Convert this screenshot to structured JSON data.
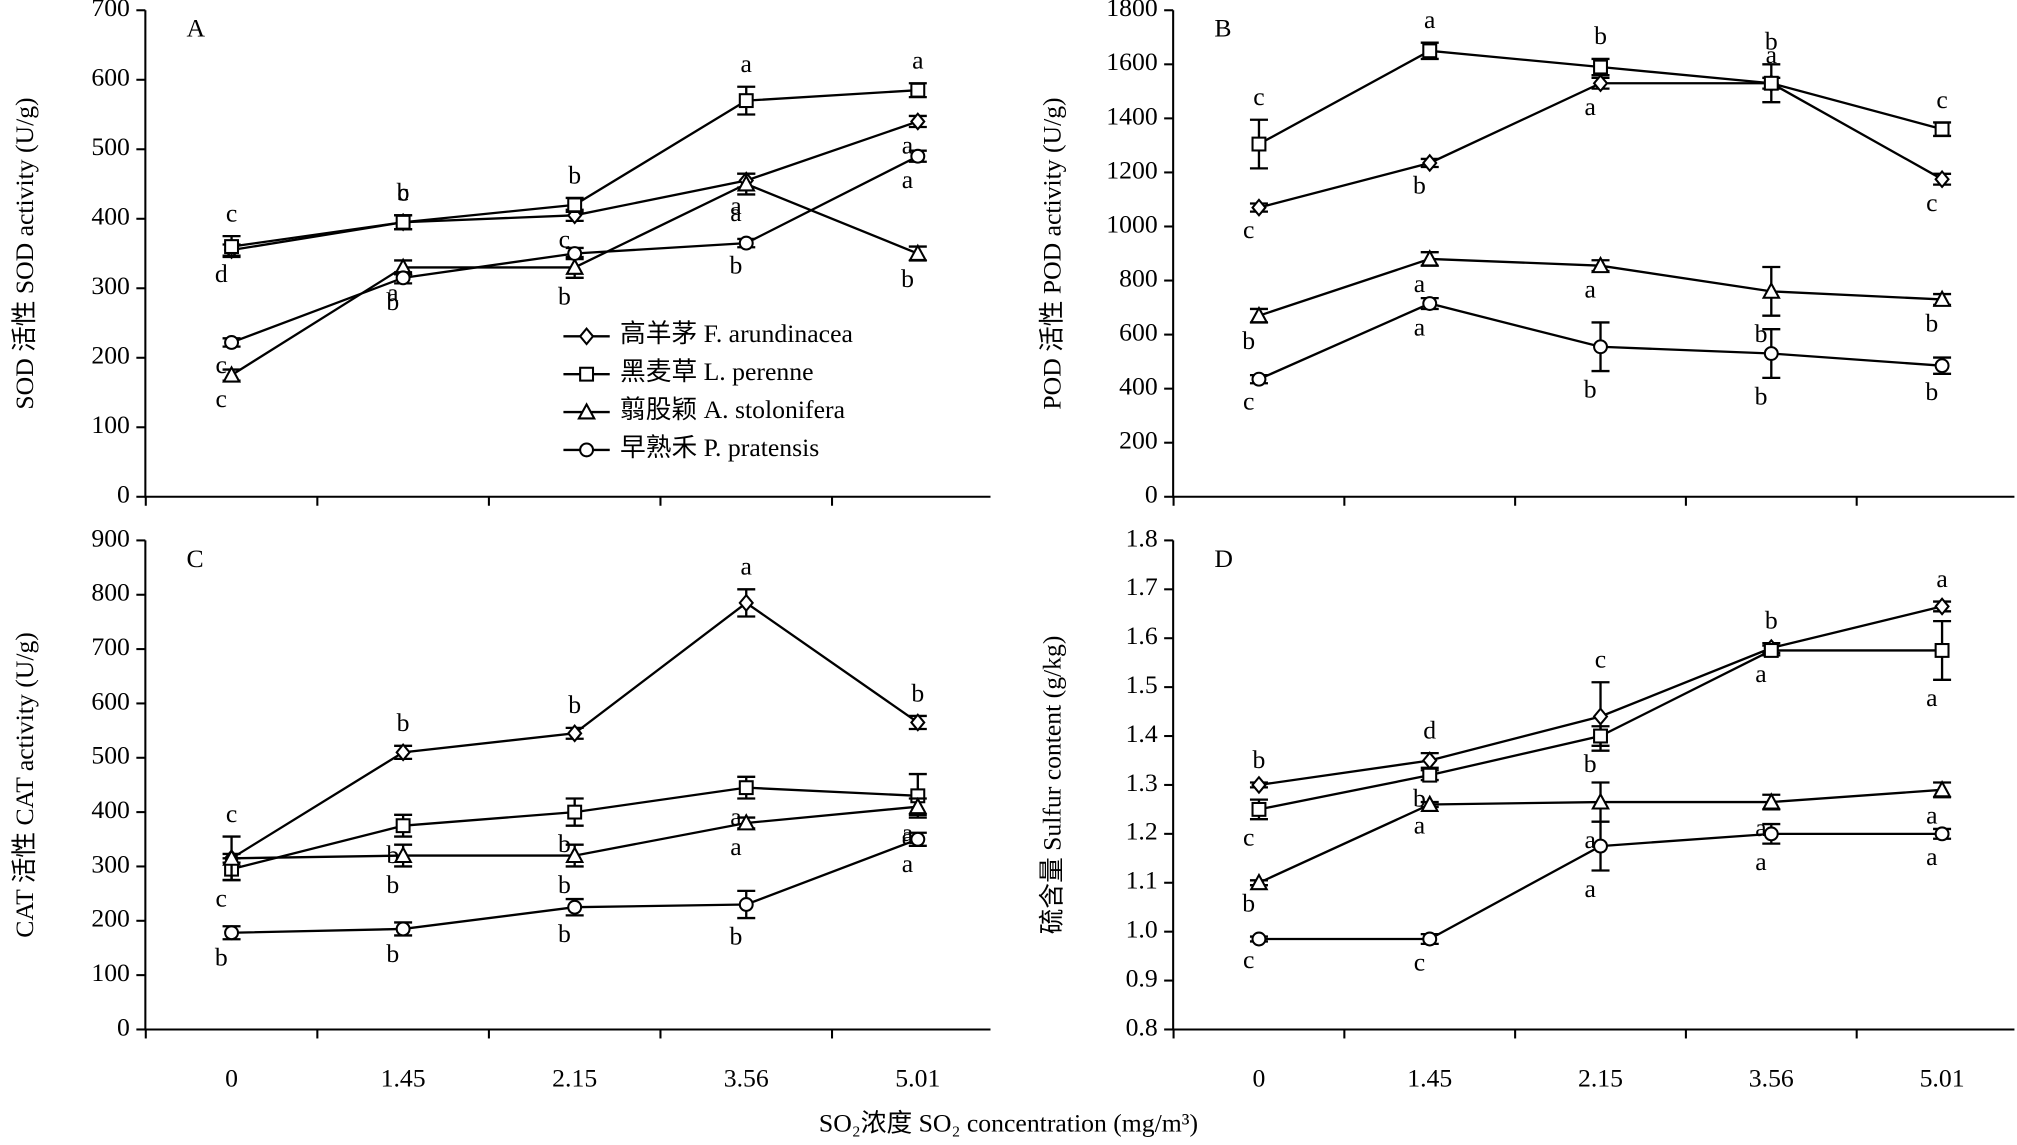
{
  "chart_data": [
    {
      "type": "line",
      "panel": "A",
      "ylabel": "SOD 活性 SOD activity (U/g)",
      "ylim": [
        0,
        700
      ],
      "yticks": [
        0,
        100,
        200,
        300,
        400,
        500,
        600,
        700
      ],
      "legend": true,
      "series": [
        {
          "name": "高羊茅 F. arundinacea",
          "marker": "diamond",
          "values": [
            355,
            395,
            405,
            455,
            540
          ],
          "errors": [
            8,
            10,
            8,
            10,
            8
          ],
          "labels": [
            "d",
            "c",
            "c",
            "a",
            "a"
          ]
        },
        {
          "name": "黑麦草 L. perenne",
          "marker": "square",
          "values": [
            360,
            395,
            420,
            570,
            585
          ],
          "errors": [
            15,
            10,
            10,
            20,
            10
          ],
          "labels": [
            "c",
            "b",
            "b",
            "a",
            "a"
          ]
        },
        {
          "name": "翦股颖 A. stolonifera",
          "marker": "triangle",
          "values": [
            175,
            330,
            330,
            450,
            350
          ],
          "errors": [
            8,
            10,
            15,
            15,
            10
          ],
          "labels": [
            "c",
            "a",
            "b",
            "a",
            "b"
          ]
        },
        {
          "name": "早熟禾 P. pratensis",
          "marker": "circle",
          "values": [
            222,
            315,
            350,
            365,
            490
          ],
          "errors": [
            6,
            8,
            8,
            6,
            8
          ],
          "labels": [
            "c",
            "b",
            null,
            "b",
            "a"
          ]
        }
      ]
    },
    {
      "type": "line",
      "panel": "B",
      "ylabel": "POD 活性 POD activity (U/g)",
      "ylim": [
        0,
        1800
      ],
      "yticks": [
        0,
        200,
        400,
        600,
        800,
        1000,
        1200,
        1400,
        1600,
        1800
      ],
      "series": [
        {
          "marker": "diamond",
          "values": [
            1070,
            1235,
            1530,
            1530,
            1175
          ],
          "errors": [
            15,
            15,
            20,
            20,
            20
          ],
          "labels": [
            "c",
            "b",
            "a",
            "a",
            "c"
          ]
        },
        {
          "marker": "square",
          "values": [
            1305,
            1650,
            1590,
            1530,
            1360
          ],
          "errors": [
            90,
            30,
            30,
            70,
            25
          ],
          "labels": [
            "c",
            "a",
            "b",
            "b",
            "c"
          ]
        },
        {
          "marker": "triangle",
          "values": [
            670,
            880,
            855,
            760,
            730
          ],
          "errors": [
            25,
            25,
            20,
            90,
            20
          ],
          "labels": [
            "b",
            "a",
            "a",
            "b",
            "b"
          ]
        },
        {
          "marker": "circle",
          "values": [
            435,
            715,
            555,
            530,
            485
          ],
          "errors": [
            15,
            20,
            90,
            90,
            30
          ],
          "labels": [
            "c",
            "a",
            "b",
            "b",
            "b"
          ]
        }
      ]
    },
    {
      "type": "line",
      "panel": "C",
      "ylabel": "CAT 活性 CAT activity (U/g)",
      "xlabel": "SO₂浓度 SO₂ concentration (mg/m³)",
      "categories": [
        "0",
        "1.45",
        "2.15",
        "3.56",
        "5.01"
      ],
      "ylim": [
        0,
        900
      ],
      "yticks": [
        0,
        100,
        200,
        300,
        400,
        500,
        600,
        700,
        800,
        900
      ],
      "series": [
        {
          "marker": "diamond",
          "values": [
            315,
            510,
            545,
            785,
            565
          ],
          "errors": [
            8,
            12,
            10,
            25,
            12
          ],
          "labels": [
            null,
            "b",
            "b",
            "a",
            "b"
          ]
        },
        {
          "marker": "square",
          "values": [
            295,
            375,
            400,
            445,
            430
          ],
          "errors": [
            20,
            20,
            25,
            20,
            40
          ],
          "labels": [
            "c",
            "b",
            "b",
            "a",
            "a"
          ]
        },
        {
          "marker": "triangle",
          "values": [
            315,
            320,
            320,
            380,
            410
          ],
          "errors": [
            40,
            20,
            20,
            10,
            15
          ],
          "labels": [
            "c",
            "b",
            "b",
            "a",
            "a"
          ]
        },
        {
          "marker": "circle",
          "values": [
            178,
            185,
            225,
            230,
            350
          ],
          "errors": [
            12,
            12,
            15,
            25,
            12
          ],
          "labels": [
            "b",
            "b",
            "b",
            "b",
            "a"
          ]
        }
      ]
    },
    {
      "type": "line",
      "panel": "D",
      "ylabel": "硫含量 Sulfur content (g/kg)",
      "categories": [
        "0",
        "1.45",
        "2.15",
        "3.56",
        "5.01"
      ],
      "ylim": [
        0.8,
        1.8
      ],
      "yticks": [
        0.8,
        0.9,
        {
          "value": 1,
          "label": "1.0"
        },
        1.1,
        1.2,
        1.3,
        1.4,
        1.5,
        1.6,
        1.7,
        1.8
      ],
      "series": [
        {
          "marker": "diamond",
          "values": [
            1.3,
            1.35,
            1.44,
            1.58,
            1.665
          ],
          "errors": [
            0.005,
            0.015,
            0.07,
            0.01,
            0.01
          ],
          "labels": [
            "b",
            "d",
            "c",
            "b",
            "a"
          ]
        },
        {
          "marker": "square",
          "values": [
            1.25,
            1.32,
            1.4,
            1.575,
            1.575
          ],
          "errors": [
            0.02,
            0.01,
            0.02,
            0.01,
            0.06
          ],
          "labels": [
            "c",
            "b",
            "b",
            "a",
            "a"
          ]
        },
        {
          "marker": "triangle",
          "values": [
            1.1,
            1.26,
            1.265,
            1.265,
            1.29
          ],
          "errors": [
            0.005,
            0.005,
            0.04,
            0.015,
            0.015
          ],
          "labels": [
            "b",
            "a",
            "a",
            "a",
            "a"
          ]
        },
        {
          "marker": "circle",
          "values": [
            0.985,
            0.985,
            1.175,
            1.2,
            1.2
          ],
          "errors": [
            0.005,
            0.01,
            0.05,
            0.02,
            0.01
          ],
          "labels": [
            "c",
            "c",
            "a",
            "a",
            "a"
          ]
        }
      ]
    }
  ]
}
